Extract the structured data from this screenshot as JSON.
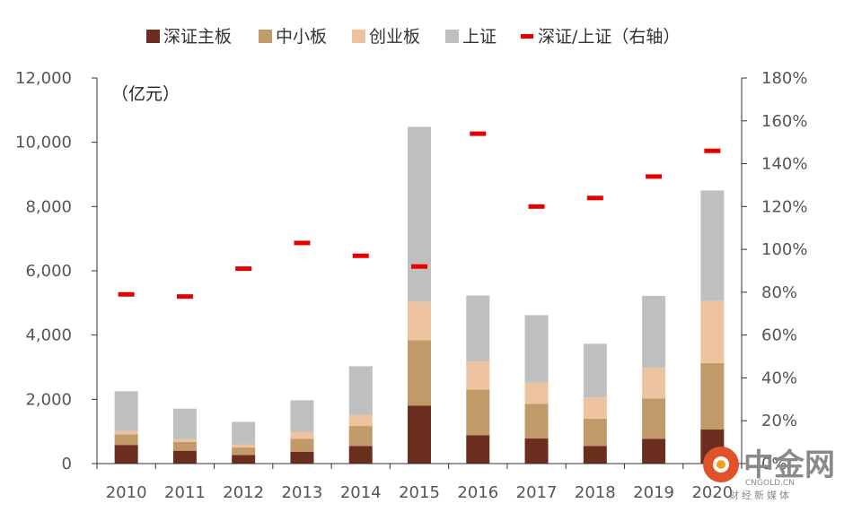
{
  "chart_data": {
    "type": "bar",
    "stacked": true,
    "unit_label": "（亿元）",
    "categories": [
      "2010",
      "2011",
      "2012",
      "2013",
      "2014",
      "2015",
      "2016",
      "2017",
      "2018",
      "2019",
      "2020"
    ],
    "series": [
      {
        "name": "深证主板",
        "color": "#6b2e1e",
        "values": [
          580,
          400,
          270,
          370,
          550,
          1800,
          880,
          780,
          550,
          770,
          1060
        ]
      },
      {
        "name": "中小板",
        "color": "#c09a69",
        "values": [
          330,
          270,
          230,
          400,
          620,
          2040,
          1420,
          1080,
          850,
          1260,
          2070
        ]
      },
      {
        "name": "创业板",
        "color": "#ecc39e",
        "values": [
          100,
          90,
          100,
          220,
          340,
          1190,
          880,
          660,
          660,
          950,
          1930
        ]
      },
      {
        "name": "上证",
        "color": "#bfbfbf",
        "values": [
          1240,
          950,
          700,
          980,
          1520,
          5450,
          2050,
          2100,
          1670,
          2240,
          3440
        ]
      }
    ],
    "line_series": {
      "name": "深证/上证（右轴）",
      "color": "#e60000",
      "axis": "right",
      "values": [
        79,
        78,
        91,
        103,
        97,
        92,
        154,
        120,
        124,
        134,
        146
      ]
    },
    "ylim_left": [
      0,
      12000
    ],
    "yticks_left": [
      "0",
      "2,000",
      "4,000",
      "6,000",
      "8,000",
      "10,000",
      "12,000"
    ],
    "ylim_right": [
      0,
      180
    ],
    "yticks_right": [
      "0%",
      "20%",
      "40%",
      "60%",
      "80%",
      "100%",
      "120%",
      "140%",
      "160%",
      "180%"
    ],
    "legend_position": "top"
  },
  "watermark": {
    "cn": "中金网",
    "en": "CNGOLD.CN",
    "sub": "财经新媒体"
  }
}
